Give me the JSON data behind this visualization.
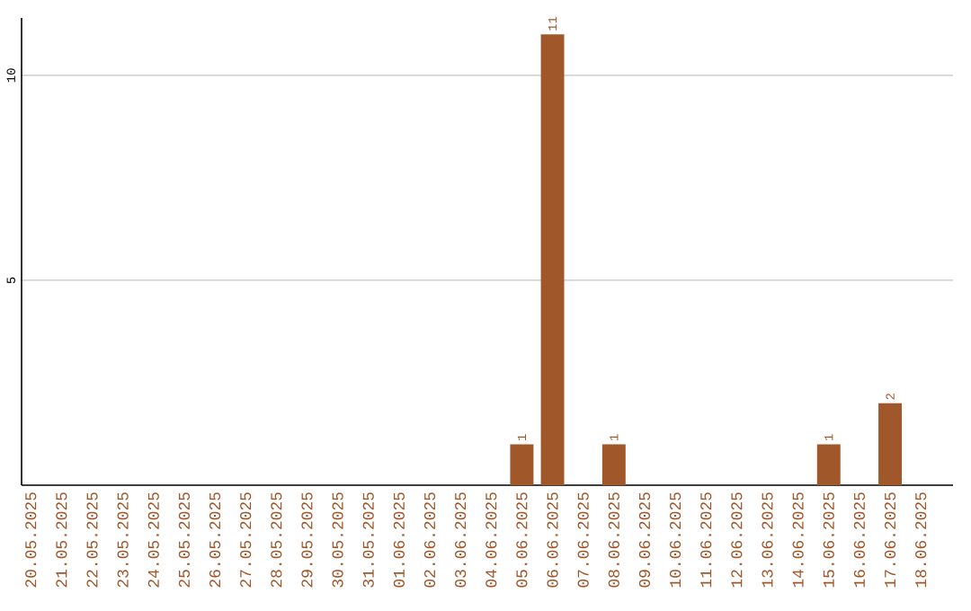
{
  "chart_data": {
    "type": "bar",
    "categories": [
      "20.05.2025",
      "21.05.2025",
      "22.05.2025",
      "23.05.2025",
      "24.05.2025",
      "25.05.2025",
      "26.05.2025",
      "27.05.2025",
      "28.05.2025",
      "29.05.2025",
      "30.05.2025",
      "31.05.2025",
      "01.06.2025",
      "02.06.2025",
      "03.06.2025",
      "04.06.2025",
      "05.06.2025",
      "06.06.2025",
      "07.06.2025",
      "08.06.2025",
      "09.06.2025",
      "10.06.2025",
      "11.06.2025",
      "12.06.2025",
      "13.06.2025",
      "14.06.2025",
      "15.06.2025",
      "16.06.2025",
      "17.06.2025",
      "18.06.2025"
    ],
    "values": [
      0,
      0,
      0,
      0,
      0,
      0,
      0,
      0,
      0,
      0,
      0,
      0,
      0,
      0,
      0,
      0,
      1,
      11,
      0,
      1,
      0,
      0,
      0,
      0,
      0,
      0,
      1,
      0,
      2,
      0
    ],
    "value_labels": [
      null,
      null,
      null,
      null,
      null,
      null,
      null,
      null,
      null,
      null,
      null,
      null,
      null,
      null,
      null,
      null,
      "1",
      "11",
      null,
      "1",
      null,
      null,
      null,
      null,
      null,
      null,
      "1",
      null,
      "2",
      null
    ],
    "color": "#a0572a",
    "ylim": [
      0,
      11.4
    ],
    "yticks": [
      5,
      10
    ],
    "grid": "y"
  }
}
